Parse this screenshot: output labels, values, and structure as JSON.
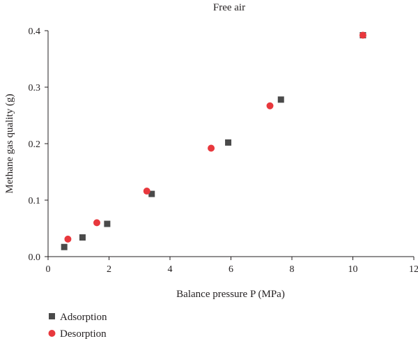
{
  "chart_data": {
    "type": "scatter",
    "title": "Free air",
    "xlabel": "Balance pressure P (MPa)",
    "ylabel": "Methane gas quality (g)",
    "xlim": [
      0,
      12
    ],
    "ylim": [
      0,
      0.4
    ],
    "xticks": [
      "0",
      "2",
      "4",
      "6",
      "8",
      "10",
      "12"
    ],
    "yticks": [
      "0.0",
      "0.1",
      "0.2",
      "0.3",
      "0.4"
    ],
    "grid": false,
    "legend_position": "bottom-left",
    "series": [
      {
        "name": "Adsorption",
        "marker": "square",
        "color": "#4a4a4a",
        "points": [
          {
            "x": 0.53,
            "y": 0.017
          },
          {
            "x": 1.13,
            "y": 0.034
          },
          {
            "x": 1.94,
            "y": 0.058
          },
          {
            "x": 3.4,
            "y": 0.111
          },
          {
            "x": 5.91,
            "y": 0.202
          },
          {
            "x": 7.64,
            "y": 0.278
          },
          {
            "x": 10.33,
            "y": 0.392
          }
        ]
      },
      {
        "name": "Desorption",
        "marker": "circle",
        "color": "#e8383d",
        "points": [
          {
            "x": 0.65,
            "y": 0.031
          },
          {
            "x": 1.6,
            "y": 0.06
          },
          {
            "x": 3.24,
            "y": 0.116
          },
          {
            "x": 5.35,
            "y": 0.192
          },
          {
            "x": 7.28,
            "y": 0.267
          },
          {
            "x": 10.33,
            "y": 0.392
          }
        ]
      }
    ]
  }
}
